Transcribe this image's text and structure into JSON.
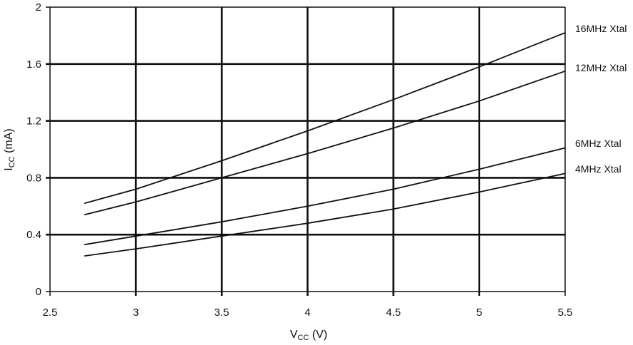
{
  "chart_data": {
    "type": "line",
    "x_axis": {
      "label_main": "V",
      "label_sub": "CC",
      "label_unit": " (V)",
      "range": [
        2.5,
        5.5
      ],
      "ticks": [
        "2.5",
        "3",
        "3.5",
        "4",
        "4.5",
        "5",
        "5.5"
      ]
    },
    "y_axis": {
      "label_main": "I",
      "label_sub": "CC",
      "label_unit": " (mA)",
      "range": [
        0,
        2
      ],
      "ticks": [
        "0",
        "0.4",
        "0.8",
        "1.2",
        "1.6",
        "2"
      ]
    },
    "grid": true,
    "legend": "curve labels at right edge",
    "series": [
      {
        "name": "16MHz Xtal",
        "x": [
          2.7,
          3.0,
          3.5,
          4.0,
          4.5,
          5.0,
          5.5
        ],
        "y": [
          0.62,
          0.72,
          0.92,
          1.13,
          1.35,
          1.58,
          1.82
        ]
      },
      {
        "name": "12MHz Xtal",
        "x": [
          2.7,
          3.0,
          3.5,
          4.0,
          4.5,
          5.0,
          5.5
        ],
        "y": [
          0.54,
          0.63,
          0.8,
          0.97,
          1.15,
          1.34,
          1.55
        ]
      },
      {
        "name": "6MHz Xtal",
        "x": [
          2.7,
          3.0,
          3.5,
          4.0,
          4.5,
          5.0,
          5.5
        ],
        "y": [
          0.33,
          0.39,
          0.49,
          0.6,
          0.72,
          0.86,
          1.01
        ]
      },
      {
        "name": "4MHz Xtal",
        "x": [
          2.7,
          3.0,
          3.5,
          4.0,
          4.5,
          5.0,
          5.5
        ],
        "y": [
          0.25,
          0.3,
          0.39,
          0.48,
          0.58,
          0.7,
          0.83
        ]
      }
    ]
  }
}
